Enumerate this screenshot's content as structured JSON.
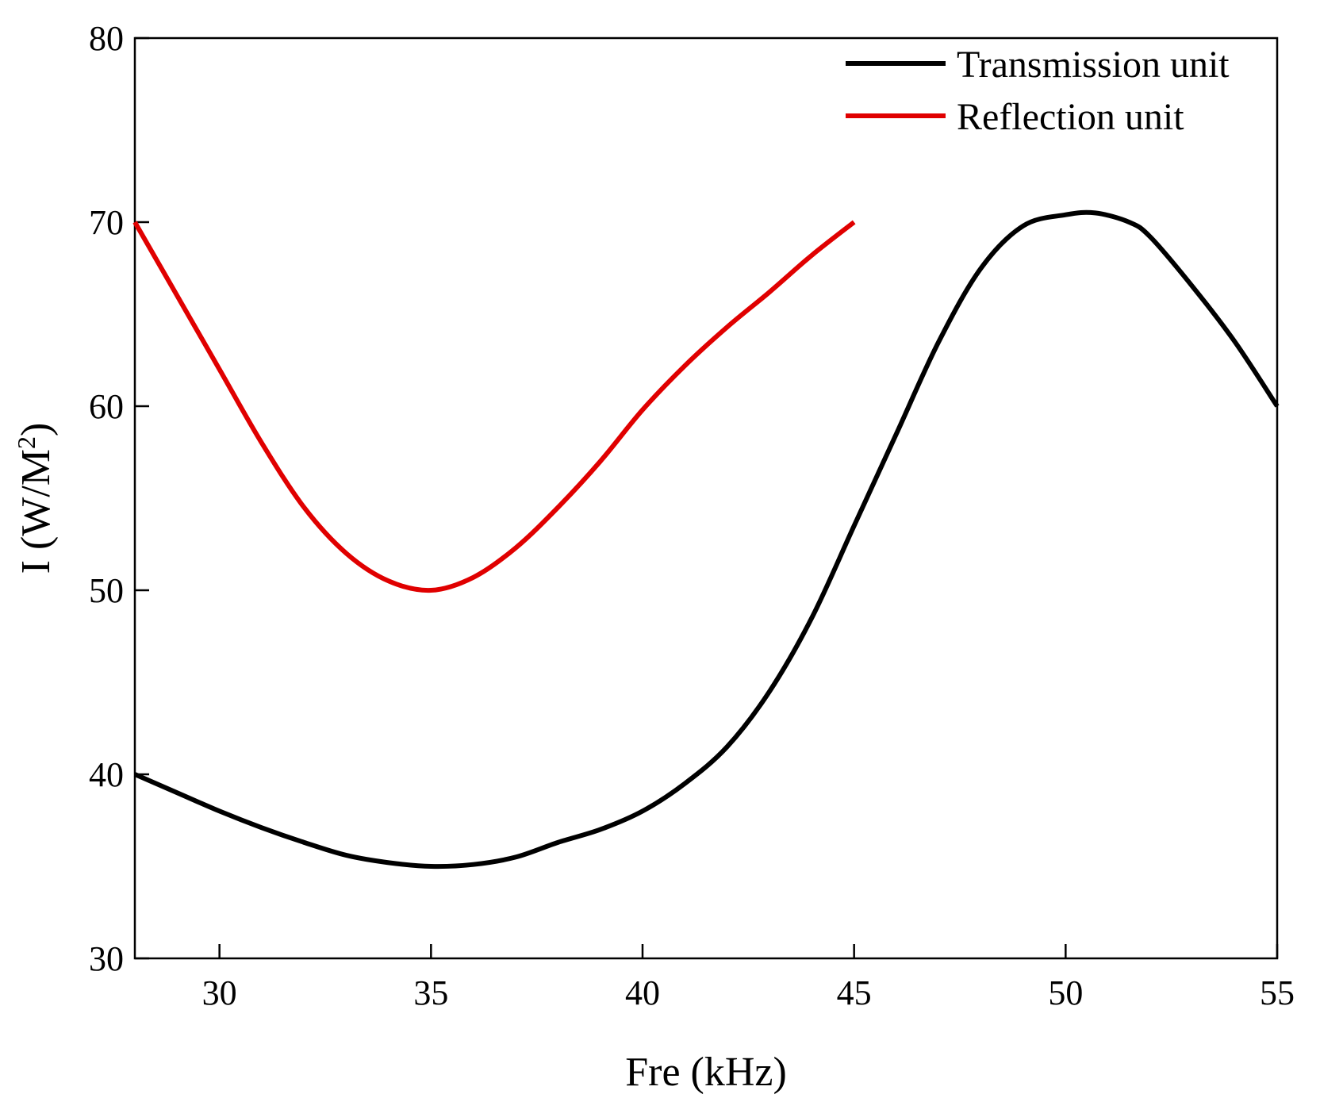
{
  "chart_data": {
    "type": "line",
    "title": "",
    "xlabel": "Fre (kHz)",
    "ylabel_main": "I (W/M",
    "ylabel_sup": "2",
    "ylabel_close": ")",
    "xlim": [
      28,
      55
    ],
    "ylim": [
      30,
      80
    ],
    "xticks": [
      30,
      35,
      40,
      45,
      50,
      55
    ],
    "yticks": [
      30,
      40,
      50,
      60,
      70,
      80
    ],
    "grid": false,
    "legend_position": "top-right",
    "series": [
      {
        "name": "Transmission unit",
        "color": "#000000",
        "x": [
          28,
          29,
          30,
          31,
          32,
          33,
          34,
          35,
          36,
          37,
          38,
          39,
          40,
          41,
          42,
          43,
          44,
          45,
          46,
          47,
          48,
          49,
          50,
          50.7,
          51.5,
          52,
          53,
          54,
          55
        ],
        "y": [
          40,
          39,
          38,
          37.1,
          36.3,
          35.6,
          35.2,
          35,
          35.1,
          35.5,
          36.3,
          37,
          38,
          39.5,
          41.5,
          44.5,
          48.5,
          53.5,
          58.5,
          63.5,
          67.5,
          69.8,
          70.4,
          70.5,
          70,
          69.2,
          66.5,
          63.5,
          60
        ]
      },
      {
        "name": "Reflection unit",
        "color": "#e00000",
        "x": [
          28,
          29,
          30,
          31,
          32,
          33,
          34,
          35,
          36,
          37,
          38,
          39,
          40,
          41,
          42,
          43,
          44,
          45
        ],
        "y": [
          70,
          66,
          62,
          58,
          54.5,
          52,
          50.5,
          50,
          50.7,
          52.3,
          54.5,
          57,
          59.8,
          62.2,
          64.3,
          66.2,
          68.2,
          70
        ]
      }
    ]
  }
}
